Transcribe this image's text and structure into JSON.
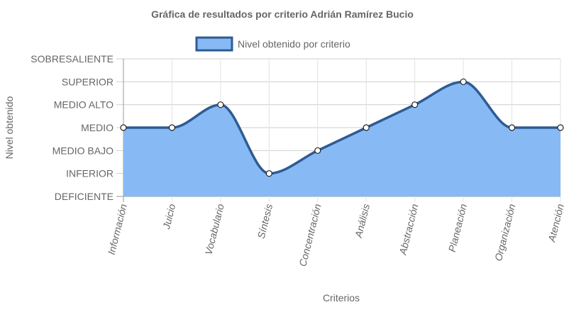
{
  "chart_data": {
    "type": "area",
    "title": "Gráfica de resultados por criterio Adrián Ramírez Bucio",
    "xlabel": "Criterios",
    "ylabel": "Nivel obtenido",
    "categories": [
      "Información",
      "Juicio",
      "Vocabulario",
      "Síntesis",
      "Concentración",
      "Análisis",
      "Abstracción",
      "Planeación",
      "Organización",
      "Atención"
    ],
    "y_levels": [
      "DEFICIENTE",
      "INFERIOR",
      "MEDIO BAJO",
      "MEDIO",
      "MEDIO ALTO",
      "SUPERIOR",
      "SOBRESALIENTE"
    ],
    "ylim": [
      0,
      6
    ],
    "grid": true,
    "legend_position": "top",
    "series": [
      {
        "name": "Nivel obtenido por criterio",
        "values": [
          3,
          3,
          4,
          1,
          2,
          3,
          4,
          5,
          3,
          3
        ],
        "fill_color": "#87b9f5",
        "line_color": "#2e5b92"
      }
    ]
  }
}
